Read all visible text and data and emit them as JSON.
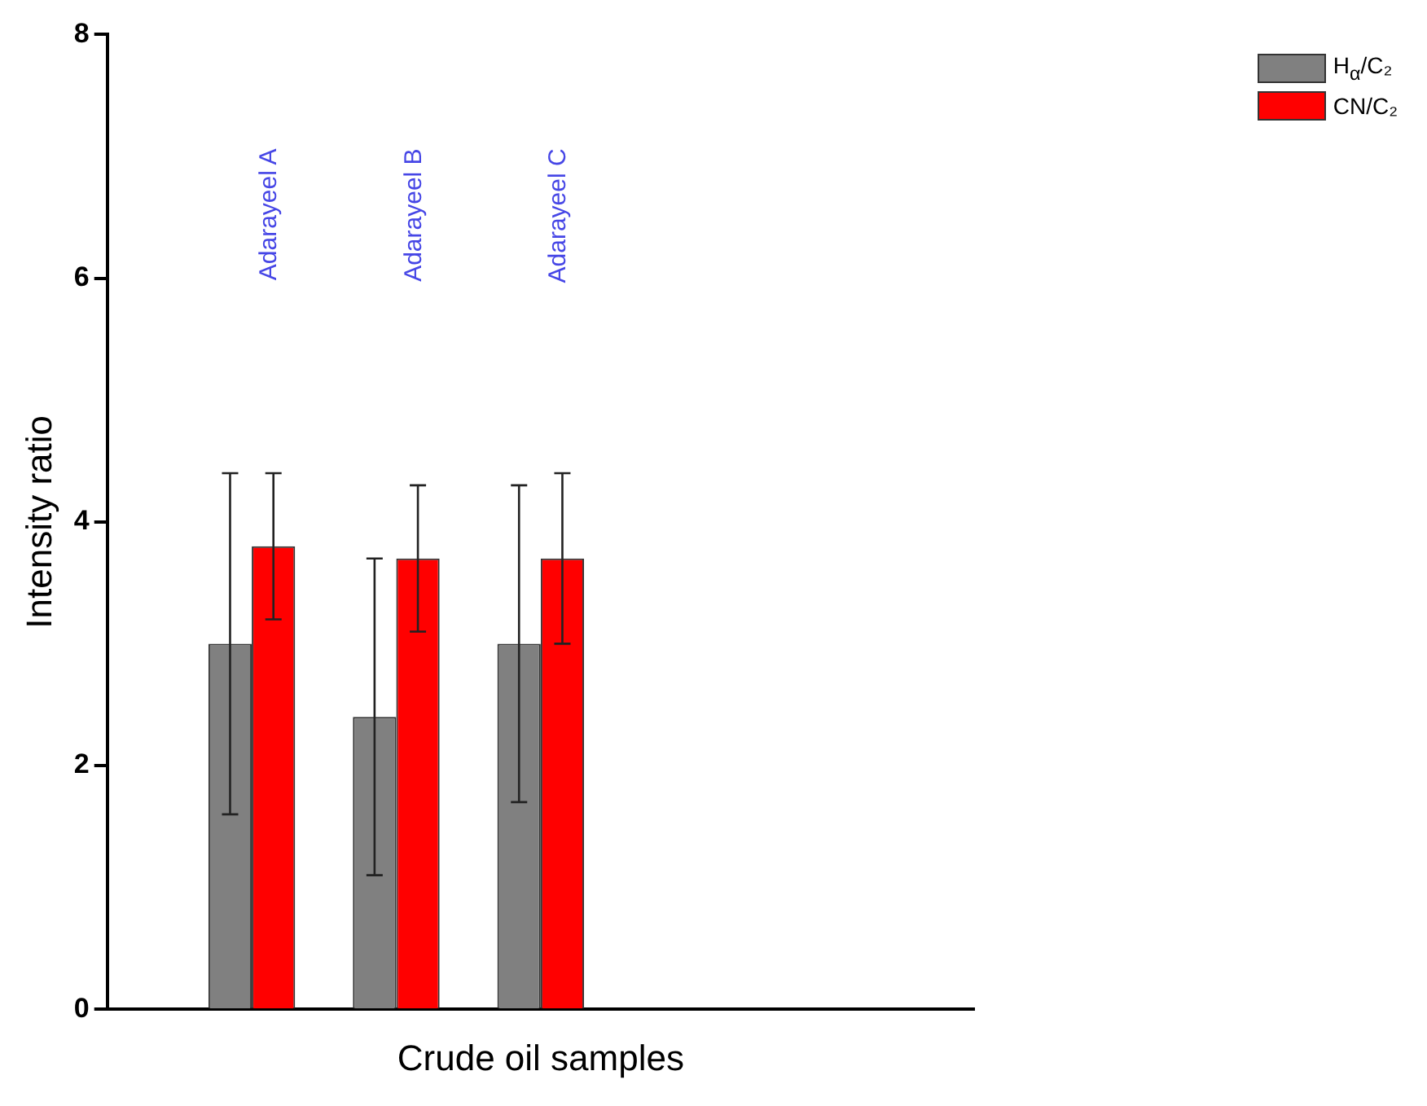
{
  "chart_data": {
    "type": "bar",
    "xlabel": "Crude oil samples",
    "ylabel": "Intensity ratio",
    "categories": [
      null,
      "Adarayeel A",
      "Adarayeel B",
      "Adarayeel C",
      null,
      null,
      null
    ],
    "series": [
      {
        "name": "H$_{α}$/C₂",
        "color": "#808080",
        "values": [
          null,
          3.0,
          2.4,
          3.0,
          null,
          null,
          null
        ],
        "errors": [
          null,
          [
            1.6,
            4.4
          ],
          [
            1.1,
            3.7
          ],
          [
            1.7,
            4.3
          ],
          null,
          null,
          null
        ]
      },
      {
        "name": "CN/C₂",
        "color": "#ff0000",
        "values": [
          null,
          3.8,
          3.7,
          3.7,
          null,
          null,
          null
        ],
        "errors": [
          null,
          [
            3.2,
            4.4
          ],
          [
            3.1,
            4.3
          ],
          [
            3.0,
            4.4
          ],
          null,
          null,
          null
        ]
      }
    ],
    "ylim": [
      0,
      8
    ],
    "yticks": [
      0,
      2,
      4,
      6,
      8
    ],
    "grid": false,
    "legend": "top right"
  }
}
